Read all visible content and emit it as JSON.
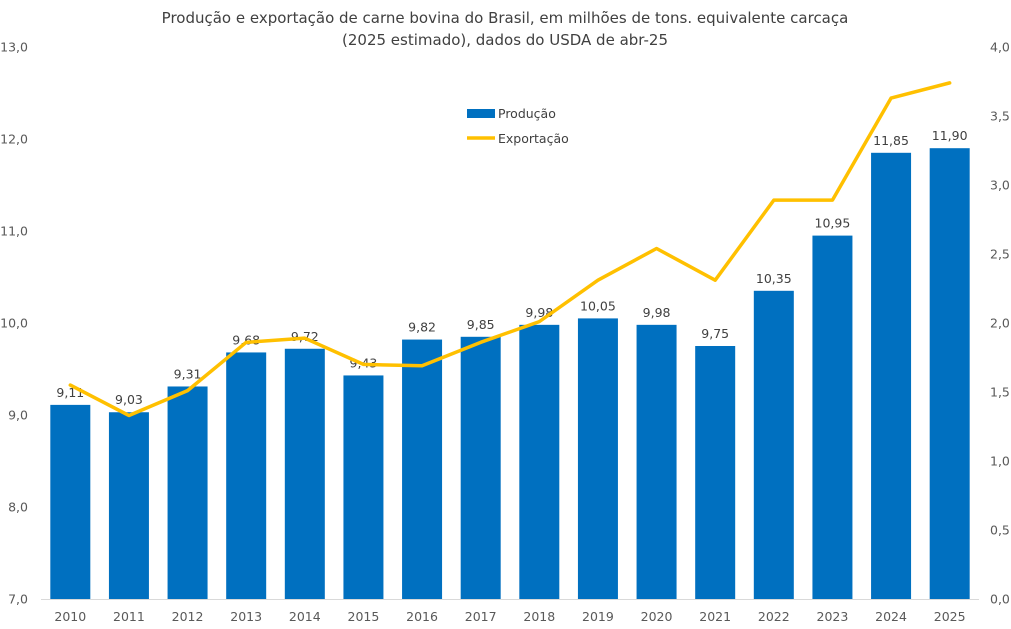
{
  "chart_data": {
    "type": "bar",
    "title": "Produção e exportação de carne bovina do Brasil, em milhões de tons. equivalente carcaça",
    "subtitle": "(2025 estimado), dados do USDA de abr-25",
    "categories": [
      "2010",
      "2011",
      "2012",
      "2013",
      "2014",
      "2015",
      "2016",
      "2017",
      "2018",
      "2019",
      "2020",
      "2021",
      "2022",
      "2023",
      "2024",
      "2025"
    ],
    "series": [
      {
        "name": "Produção",
        "type": "bar",
        "axis": "left",
        "color": "#0070C0",
        "values": [
          9.11,
          9.03,
          9.31,
          9.68,
          9.72,
          9.43,
          9.82,
          9.85,
          9.98,
          10.05,
          9.98,
          9.75,
          10.35,
          10.95,
          11.85,
          11.9
        ],
        "labels": [
          "9,11",
          "9,03",
          "9,31",
          "9,68",
          "9,72",
          "9,43",
          "9,82",
          "9,85",
          "9,98",
          "10,05",
          "9,98",
          "9,75",
          "10,35",
          "10,95",
          "11,85",
          "11,90"
        ]
      },
      {
        "name": "Exportação",
        "type": "line",
        "axis": "right",
        "color": "#FFC000",
        "values": [
          1.55,
          1.33,
          1.51,
          1.86,
          1.89,
          1.7,
          1.69,
          1.86,
          2.01,
          2.31,
          2.54,
          2.31,
          2.89,
          2.89,
          3.63,
          3.74
        ]
      }
    ],
    "left_axis": {
      "ylim": [
        7.0,
        13.0
      ],
      "ticks": [
        7.0,
        8.0,
        9.0,
        10.0,
        11.0,
        12.0,
        13.0
      ],
      "tick_labels": [
        "7,0",
        "8,0",
        "9,0",
        "10,0",
        "11,0",
        "12,0",
        "13,0"
      ]
    },
    "right_axis": {
      "ylim": [
        0.0,
        4.0
      ],
      "ticks": [
        0.0,
        0.5,
        1.0,
        1.5,
        2.0,
        2.5,
        3.0,
        3.5,
        4.0
      ],
      "tick_labels": [
        "0,0",
        "0,5",
        "1,0",
        "1,5",
        "2,0",
        "2,5",
        "3,0",
        "3,5",
        "4,0"
      ]
    },
    "xlabel": "",
    "ylabel": "",
    "grid": false,
    "legend": {
      "position": "top-center",
      "entries": [
        "Produção",
        "Exportação"
      ]
    }
  }
}
